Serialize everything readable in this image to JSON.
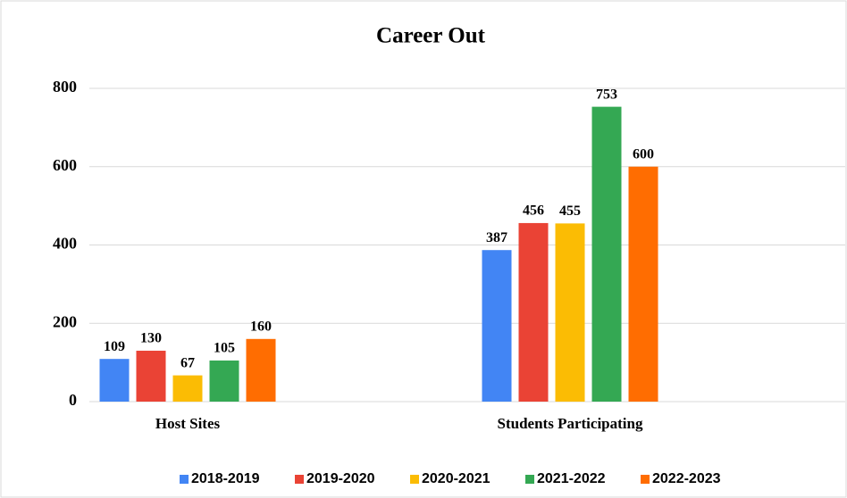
{
  "chart_data": {
    "type": "bar",
    "title": "Career Out",
    "categories": [
      "Host Sites",
      "Students Participating"
    ],
    "series": [
      {
        "name": "2018-2019",
        "color": "#4285f4",
        "values": [
          109,
          387
        ]
      },
      {
        "name": "2019-2020",
        "color": "#ea4335",
        "values": [
          130,
          456
        ]
      },
      {
        "name": "2020-2021",
        "color": "#fbbc04",
        "values": [
          67,
          455
        ]
      },
      {
        "name": "2021-2022",
        "color": "#34a853",
        "values": [
          105,
          753
        ]
      },
      {
        "name": "2022-2023",
        "color": "#ff6d01",
        "values": [
          160,
          600
        ]
      }
    ],
    "ylim": [
      0,
      800
    ],
    "yticks": [
      0,
      200,
      400,
      600,
      800
    ],
    "grid": true,
    "legend": "bottom"
  }
}
